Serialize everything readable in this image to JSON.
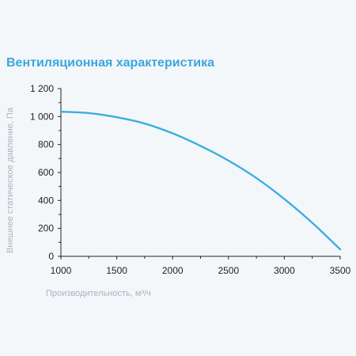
{
  "chart_data": {
    "type": "line",
    "title": "Вентиляционная характеристика",
    "xlabel": "Производительность, м³/ч",
    "ylabel": "Внешнее статическое давление, Па",
    "xlim": [
      1000,
      3500
    ],
    "ylim": [
      0,
      1200
    ],
    "x_ticks": [
      1000,
      1500,
      2000,
      2500,
      3000,
      3500
    ],
    "x_tick_labels": [
      "1000",
      "1500",
      "2000",
      "2500",
      "3000",
      "3500"
    ],
    "y_ticks": [
      0,
      200,
      400,
      600,
      800,
      1000,
      1200
    ],
    "y_tick_labels": [
      "0",
      "200",
      "400",
      "600",
      "800",
      "1 000",
      "1 200"
    ],
    "grid": false,
    "colors": {
      "series": "#3aaee0",
      "axis": "#222222",
      "title": "#3aa6dd",
      "axis_label": "#a9b4bf"
    },
    "series": [
      {
        "x": [
          1000,
          1250,
          1500,
          1750,
          2000,
          2250,
          2500,
          2750,
          3000,
          3250,
          3500
        ],
        "y": [
          1035,
          1025,
          995,
          950,
          880,
          790,
          685,
          560,
          410,
          240,
          50
        ]
      }
    ]
  }
}
